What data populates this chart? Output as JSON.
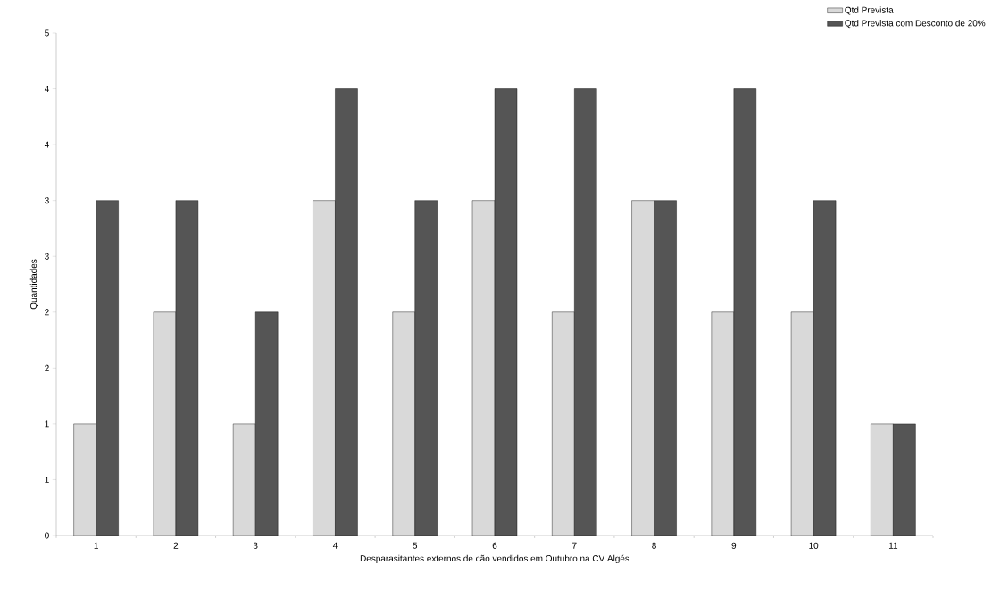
{
  "chart_data": {
    "type": "bar",
    "xlabel": "Desparasitantes externos de cão vendidos em Outubro na CV Algés",
    "ylabel": "Quantidades",
    "categories": [
      "1",
      "2",
      "3",
      "4",
      "5",
      "6",
      "7",
      "8",
      "9",
      "10",
      "11"
    ],
    "series": [
      {
        "name": "Qtd Prevista",
        "color": "#d9d9d9",
        "values": [
          1,
          2,
          1,
          3,
          2,
          3,
          2,
          3,
          2,
          2,
          1
        ]
      },
      {
        "name": "Qtd Prevista com Desconto de 20%",
        "color": "#555555",
        "values": [
          3,
          3,
          2,
          4,
          3,
          4,
          4,
          3,
          4,
          3,
          1
        ]
      }
    ],
    "ylim": [
      0,
      4.5
    ],
    "yticks": [
      0,
      {
        "value": 0.5,
        "label": "1"
      },
      1,
      {
        "value": 1.5,
        "label": "2"
      },
      2,
      {
        "value": 2.5,
        "label": "3"
      },
      3,
      {
        "value": 3.5,
        "label": "4"
      },
      4,
      {
        "value": 4.5,
        "label": "5"
      }
    ],
    "grid": false,
    "legend": "top right"
  }
}
